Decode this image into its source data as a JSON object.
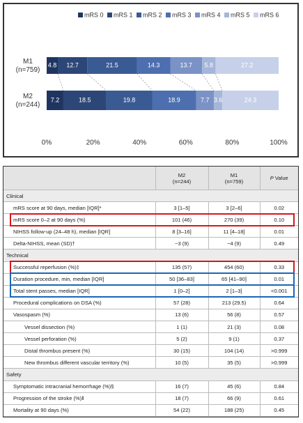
{
  "chart_data": {
    "type": "stacked-barh",
    "categories": [
      "M1 (n=759)",
      "M2 (n=244)"
    ],
    "series": [
      {
        "name": "mRS 0",
        "color": "#1f3560",
        "values": [
          4.8,
          7.2
        ]
      },
      {
        "name": "mRS 1",
        "color": "#2c4777",
        "values": [
          12.7,
          18.5
        ]
      },
      {
        "name": "mRS 2",
        "color": "#3a5a93",
        "values": [
          21.5,
          19.8
        ]
      },
      {
        "name": "mRS 3",
        "color": "#4d6faf",
        "values": [
          14.3,
          18.9
        ]
      },
      {
        "name": "mRS 4",
        "color": "#7a92c6",
        "values": [
          13.7,
          7.7
        ]
      },
      {
        "name": "mRS 5",
        "color": "#a6b6da",
        "values": [
          5.8,
          3.6
        ]
      },
      {
        "name": "mRS 6",
        "color": "#c6d1e9",
        "values": [
          27.2,
          24.3
        ]
      }
    ],
    "xlim": [
      0,
      100
    ],
    "xticks": [
      {
        "value": 0,
        "label": "0%"
      },
      {
        "value": 20,
        "label": "20%"
      },
      {
        "value": 40,
        "label": "40%"
      },
      {
        "value": 60,
        "label": "60%"
      },
      {
        "value": 80,
        "label": "80%"
      },
      {
        "value": 100,
        "label": "100%"
      }
    ],
    "legend": "top"
  },
  "table": {
    "columns": [
      "M2 (n=244)",
      "M1 (n=759)",
      "P Value"
    ],
    "sections": [
      {
        "title": "Clinical",
        "rows": [
          {
            "cells": [
              "mRS score at 90 days, median [IQR]*",
              "3 [1–5]",
              "3 [2–6]",
              "0.02"
            ]
          },
          {
            "cells": [
              "mRS score 0–2 at 90 days (%)",
              "101 (46)",
              "270 (39)",
              "0.10"
            ],
            "highlight": "#d9141b"
          },
          {
            "cells": [
              "NIHSS follow-up (24–48 h), median [IQR]",
              "8 [3–16]",
              "11 [4–18]",
              "0.01"
            ]
          },
          {
            "cells": [
              "Delta-NIHSS, mean (SD)†",
              "−3 (9)",
              "−4 (9)",
              "0.49"
            ]
          }
        ]
      },
      {
        "title": "Technical",
        "rows": [
          {
            "cells": [
              "Successful reperfusion (%)‡",
              "135 (57)",
              "454 (60)",
              "0.33"
            ],
            "highlight": "#d9141b"
          },
          {
            "cells": [
              "Duration procedure, min, median [IQR]",
              "50 [36–83]",
              "65 [41–90]",
              "0.01"
            ],
            "highlight": "#1a66b8"
          },
          {
            "cells": [
              "Total stent passes, median [IQR]",
              "1 [0–2]",
              "2 [1–3]",
              "<0.001"
            ],
            "highlight": "#1a66b8"
          },
          {
            "cells": [
              "Procedural complications on DSA (%)",
              "57 (28)",
              "213 (29.5)",
              "0.64"
            ]
          },
          {
            "cells": [
              "Vasospasm (%)",
              "13 (6)",
              "56 (8)",
              "0.57"
            ]
          },
          {
            "cells": [
              "Vessel dissection (%)",
              "1 (1)",
              "21 (3)",
              "0.08"
            ],
            "indent": 1
          },
          {
            "cells": [
              "Vessel perforation (%)",
              "5 (2)",
              "9 (1)",
              "0.37"
            ],
            "indent": 1
          },
          {
            "cells": [
              "Distal thrombus present (%)",
              "30 (15)",
              "104 (14)",
              ">0.999"
            ],
            "indent": 1
          },
          {
            "cells": [
              "New thrombus different vascular territory (%)",
              "10 (5)",
              "35 (5)",
              ">0.999"
            ],
            "indent": 1
          }
        ]
      },
      {
        "title": "Safety",
        "rows": [
          {
            "cells": [
              "Symptomatic intracranial hemorrhage (%)§",
              "16 (7)",
              "45 (6)",
              "0.84"
            ]
          },
          {
            "cells": [
              "Progression of the stroke (%)‖",
              "18 (7)",
              "66 (9)",
              "0.61"
            ]
          },
          {
            "cells": [
              "Mortality at 90 days (%)",
              "54 (22)",
              "188 (25)",
              "0.45"
            ]
          }
        ]
      }
    ]
  }
}
